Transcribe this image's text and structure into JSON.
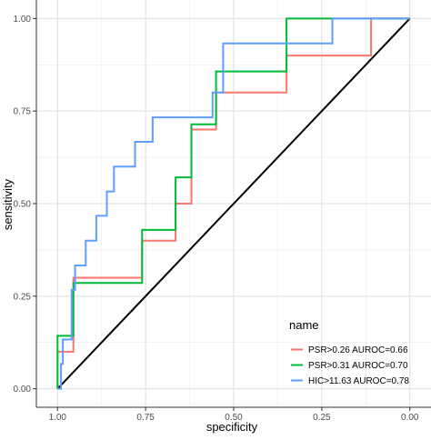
{
  "chart_data": {
    "type": "line",
    "xlabel": "specificity",
    "ylabel": "sensitivity",
    "x_reversed": true,
    "xlim": [
      1.06,
      -0.06
    ],
    "ylim": [
      -0.05,
      1.05
    ],
    "x_ticks": [
      1.0,
      0.75,
      0.5,
      0.25,
      0.0
    ],
    "x_tick_labels": [
      "1.00",
      "0.75",
      "0.50",
      "0.25",
      "0.00"
    ],
    "y_ticks": [
      0.0,
      0.25,
      0.5,
      0.75,
      1.0
    ],
    "y_tick_labels": [
      "0.00",
      "0.25",
      "0.50",
      "0.75",
      "1.00"
    ],
    "grid": true,
    "legend": {
      "title": "name",
      "position": "bottom-right"
    },
    "reference_line": {
      "from": [
        1.0,
        0.0
      ],
      "to": [
        0.0,
        1.0
      ],
      "color": "#000000"
    },
    "series": [
      {
        "name": "PSR>0.26 AUROC=0.66",
        "color": "#F8766D",
        "points": [
          [
            1.0,
            0.0
          ],
          [
            1.0,
            0.1
          ],
          [
            0.955,
            0.1
          ],
          [
            0.955,
            0.3
          ],
          [
            0.76,
            0.3
          ],
          [
            0.76,
            0.4
          ],
          [
            0.665,
            0.4
          ],
          [
            0.665,
            0.5
          ],
          [
            0.62,
            0.5
          ],
          [
            0.62,
            0.7
          ],
          [
            0.55,
            0.7
          ],
          [
            0.55,
            0.8
          ],
          [
            0.35,
            0.8
          ],
          [
            0.35,
            0.9
          ],
          [
            0.11,
            0.9
          ],
          [
            0.11,
            1.0
          ],
          [
            0.0,
            1.0
          ]
        ]
      },
      {
        "name": "PSR>0.31 AUROC=0.70",
        "color": "#00BA38",
        "points": [
          [
            1.0,
            0.0
          ],
          [
            1.0,
            0.143
          ],
          [
            0.955,
            0.143
          ],
          [
            0.955,
            0.286
          ],
          [
            0.76,
            0.286
          ],
          [
            0.76,
            0.429
          ],
          [
            0.665,
            0.429
          ],
          [
            0.665,
            0.571
          ],
          [
            0.62,
            0.571
          ],
          [
            0.62,
            0.714
          ],
          [
            0.55,
            0.714
          ],
          [
            0.55,
            0.857
          ],
          [
            0.35,
            0.857
          ],
          [
            0.35,
            1.0
          ],
          [
            0.0,
            1.0
          ]
        ]
      },
      {
        "name": "HIC>11.63 AUROC=0.78",
        "color": "#619CFF",
        "points": [
          [
            1.0,
            0.0
          ],
          [
            0.99,
            0.0
          ],
          [
            0.99,
            0.067
          ],
          [
            0.985,
            0.067
          ],
          [
            0.985,
            0.133
          ],
          [
            0.96,
            0.133
          ],
          [
            0.96,
            0.267
          ],
          [
            0.95,
            0.267
          ],
          [
            0.95,
            0.333
          ],
          [
            0.92,
            0.333
          ],
          [
            0.92,
            0.4
          ],
          [
            0.89,
            0.4
          ],
          [
            0.89,
            0.467
          ],
          [
            0.86,
            0.467
          ],
          [
            0.86,
            0.533
          ],
          [
            0.84,
            0.533
          ],
          [
            0.84,
            0.6
          ],
          [
            0.78,
            0.6
          ],
          [
            0.78,
            0.667
          ],
          [
            0.73,
            0.667
          ],
          [
            0.73,
            0.733
          ],
          [
            0.56,
            0.733
          ],
          [
            0.56,
            0.8
          ],
          [
            0.53,
            0.8
          ],
          [
            0.53,
            0.933
          ],
          [
            0.22,
            0.933
          ],
          [
            0.22,
            1.0
          ],
          [
            0.0,
            1.0
          ]
        ]
      }
    ]
  }
}
